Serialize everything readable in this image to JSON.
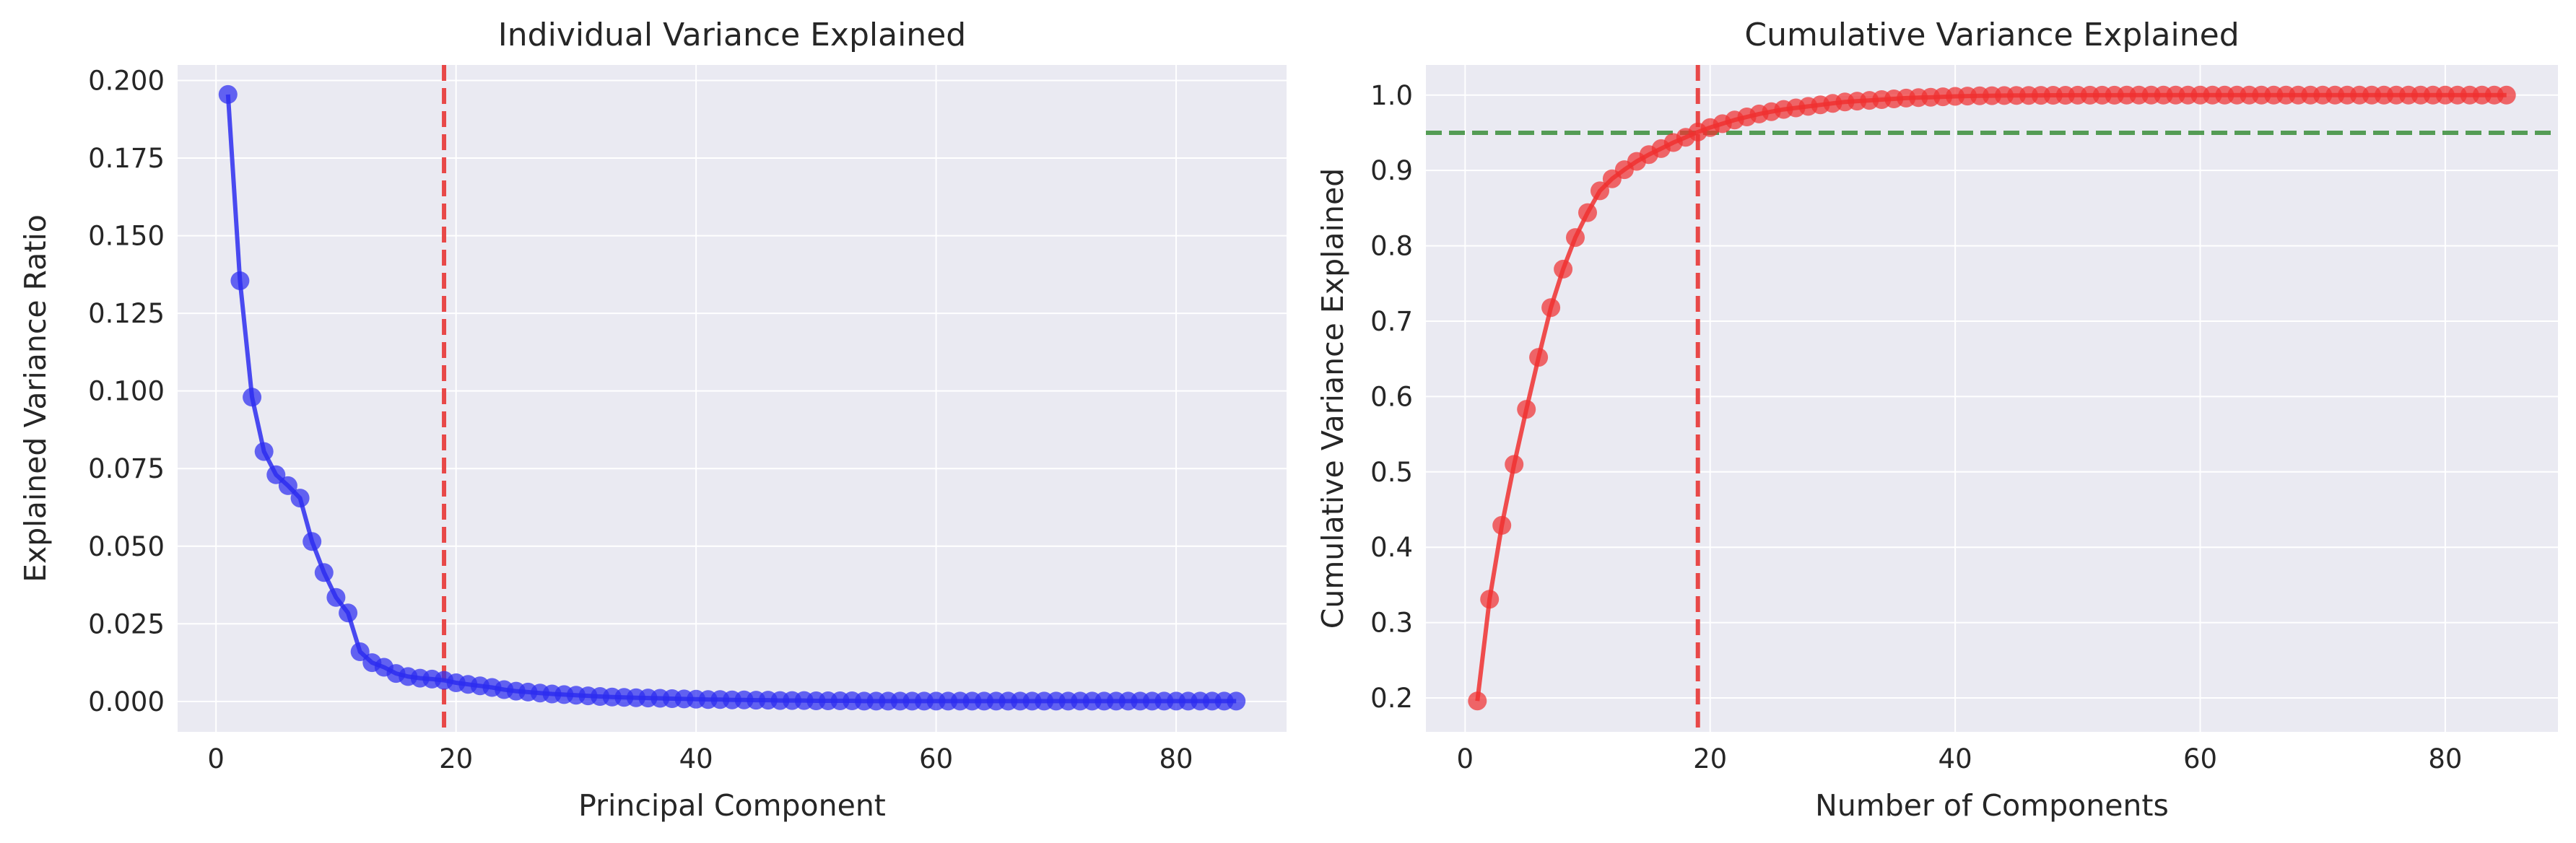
{
  "chart_data": [
    {
      "type": "line",
      "title": "Individual Variance Explained",
      "xlabel": "Principal Component",
      "ylabel": "Explained Variance Ratio",
      "xlim": [
        -3.2,
        89.2
      ],
      "ylim": [
        -0.0098,
        0.205
      ],
      "xticks": [
        0,
        20,
        40,
        60,
        80
      ],
      "xtick_labels": [
        "0",
        "20",
        "40",
        "60",
        "80"
      ],
      "yticks": [
        0,
        0.025,
        0.05,
        0.075,
        0.1,
        0.125,
        0.15,
        0.175,
        0.2
      ],
      "ytick_labels": [
        "0.000",
        "0.025",
        "0.050",
        "0.075",
        "0.100",
        "0.125",
        "0.150",
        "0.175",
        "0.200"
      ],
      "grid": true,
      "vline": {
        "x": 19,
        "color": "#e8403f",
        "style": "dashed"
      },
      "series": [
        {
          "color": "#2d2df0",
          "marker": "circle",
          "x": [
            1,
            2,
            3,
            4,
            5,
            6,
            7,
            8,
            9,
            10,
            11,
            12,
            13,
            14,
            15,
            16,
            17,
            18,
            19,
            20,
            21,
            22,
            23,
            24,
            25,
            26,
            27,
            28,
            29,
            30,
            31,
            32,
            33,
            34,
            35,
            36,
            37,
            38,
            39,
            40,
            41,
            42,
            43,
            44,
            45,
            46,
            47,
            48,
            49,
            50,
            51,
            52,
            53,
            54,
            55,
            56,
            57,
            58,
            59,
            60,
            61,
            62,
            63,
            64,
            65,
            66,
            67,
            68,
            69,
            70,
            71,
            72,
            73,
            74,
            75,
            76,
            77,
            78,
            79,
            80,
            81,
            82,
            83,
            84,
            85
          ],
          "y": [
            0.1955,
            0.1355,
            0.098,
            0.0805,
            0.073,
            0.0695,
            0.0655,
            0.0515,
            0.0415,
            0.0335,
            0.0285,
            0.016,
            0.0125,
            0.011,
            0.009,
            0.008,
            0.0075,
            0.0072,
            0.0068,
            0.006,
            0.0055,
            0.005,
            0.0045,
            0.0038,
            0.0033,
            0.003,
            0.0027,
            0.0024,
            0.0022,
            0.002,
            0.0018,
            0.0016,
            0.0014,
            0.0013,
            0.0012,
            0.0011,
            0.001,
            0.0009,
            0.0008,
            0.0007,
            0.0006,
            0.0006,
            0.0005,
            0.0005,
            0.0004,
            0.0004,
            0.0003,
            0.0003,
            0.0003,
            0.0002,
            0.0002,
            0.0002,
            0.0002,
            0.0001,
            0.0001,
            0.0001,
            0.0001,
            0.0001,
            0.0001,
            0.0001,
            0.0001,
            0.0001,
            0.0001,
            0.0001,
            0.0001,
            0.0001,
            0.0001,
            0.0001,
            0.0001,
            0.0001,
            0.0001,
            0.0001,
            0.0001,
            0.0001,
            0.0001,
            0.0001,
            0.0001,
            0.0001,
            0.0001,
            0.0001,
            0.0001,
            0.0001,
            0.0001,
            0.0001,
            0.0001
          ]
        }
      ]
    },
    {
      "type": "line",
      "title": "Cumulative Variance Explained",
      "xlabel": "Number of Components",
      "ylabel": "Cumulative Variance Explained",
      "xlim": [
        -3.2,
        89.2
      ],
      "ylim": [
        0.155,
        1.04
      ],
      "xticks": [
        0,
        20,
        40,
        60,
        80
      ],
      "xtick_labels": [
        "0",
        "20",
        "40",
        "60",
        "80"
      ],
      "yticks": [
        0.2,
        0.3,
        0.4,
        0.5,
        0.6,
        0.7,
        0.8,
        0.9,
        1.0
      ],
      "ytick_labels": [
        "0.2",
        "0.3",
        "0.4",
        "0.5",
        "0.6",
        "0.7",
        "0.8",
        "0.9",
        "1.0"
      ],
      "grid": true,
      "vline": {
        "x": 19,
        "color": "#e8403f",
        "style": "dashed"
      },
      "hline": {
        "y": 0.95,
        "color": "#3a8f3a",
        "style": "dashed"
      },
      "series": [
        {
          "color": "#f03030",
          "marker": "circle",
          "x": [
            1,
            2,
            3,
            4,
            5,
            6,
            7,
            8,
            9,
            10,
            11,
            12,
            13,
            14,
            15,
            16,
            17,
            18,
            19,
            20,
            21,
            22,
            23,
            24,
            25,
            26,
            27,
            28,
            29,
            30,
            31,
            32,
            33,
            34,
            35,
            36,
            37,
            38,
            39,
            40,
            41,
            42,
            43,
            44,
            45,
            46,
            47,
            48,
            49,
            50,
            51,
            52,
            53,
            54,
            55,
            56,
            57,
            58,
            59,
            60,
            61,
            62,
            63,
            64,
            65,
            66,
            67,
            68,
            69,
            70,
            71,
            72,
            73,
            74,
            75,
            76,
            77,
            78,
            79,
            80,
            81,
            82,
            83,
            84,
            85
          ],
          "y": [
            0.196,
            0.331,
            0.429,
            0.51,
            0.583,
            0.652,
            0.718,
            0.769,
            0.811,
            0.844,
            0.873,
            0.889,
            0.901,
            0.912,
            0.921,
            0.929,
            0.937,
            0.944,
            0.951,
            0.957,
            0.962,
            0.967,
            0.971,
            0.975,
            0.978,
            0.981,
            0.983,
            0.985,
            0.987,
            0.989,
            0.991,
            0.992,
            0.993,
            0.994,
            0.995,
            0.996,
            0.9966,
            0.9972,
            0.9978,
            0.9983,
            0.9987,
            0.999,
            0.9992,
            0.9994,
            0.9995,
            0.9996,
            0.9997,
            0.9998,
            0.9998,
            0.9999,
            0.9999,
            0.9999,
            0.9999,
            1,
            1,
            1,
            1,
            1,
            1,
            1,
            1,
            1,
            1,
            1,
            1,
            1,
            1,
            1,
            1,
            1,
            1,
            1,
            1,
            1,
            1,
            1,
            1,
            1,
            1,
            1,
            1,
            1,
            1,
            1,
            1
          ]
        }
      ]
    }
  ]
}
